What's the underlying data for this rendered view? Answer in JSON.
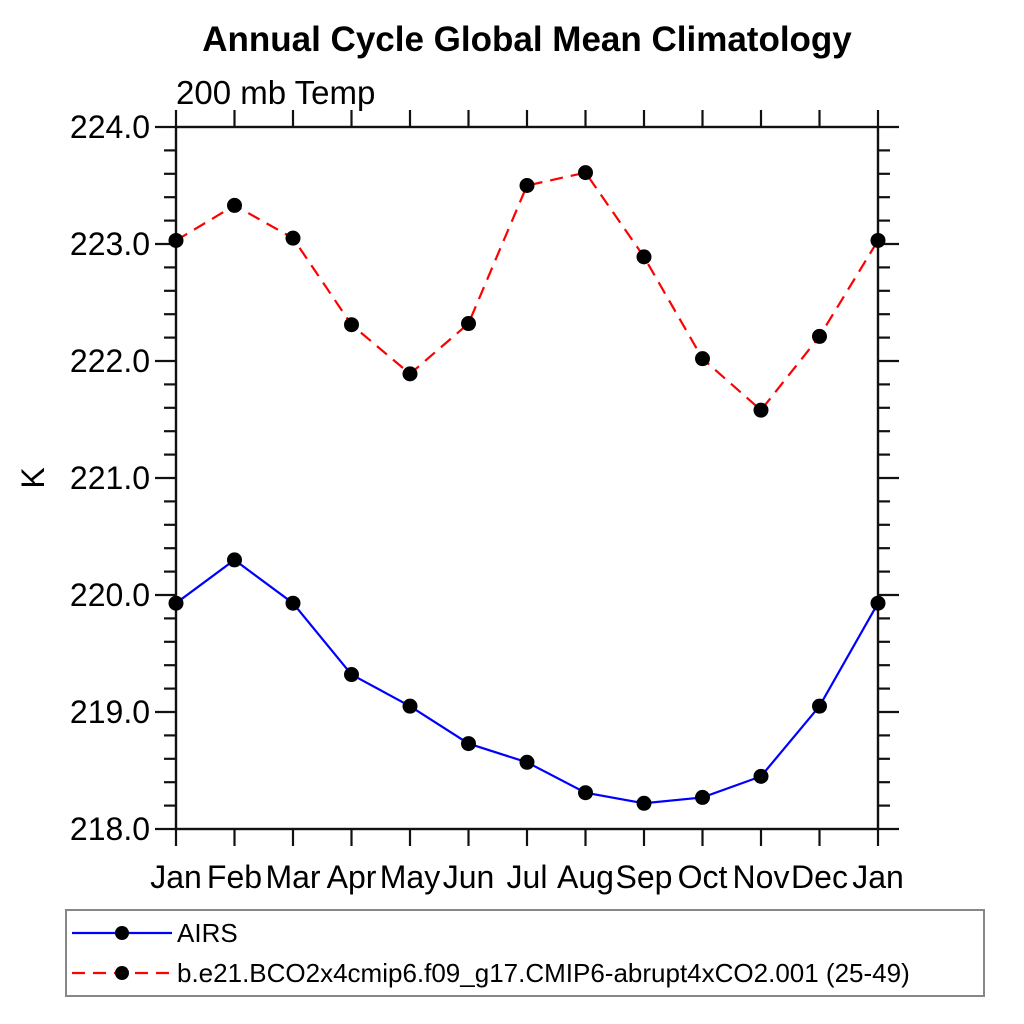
{
  "chart_data": {
    "type": "line",
    "title": "Annual Cycle Global Mean Climatology",
    "subtitle": "200 mb Temp",
    "ylabel": "K",
    "x_categories": [
      "Jan",
      "Feb",
      "Mar",
      "Apr",
      "May",
      "Jun",
      "Jul",
      "Aug",
      "Sep",
      "Oct",
      "Nov",
      "Dec",
      "Jan"
    ],
    "ylim": [
      218.0,
      224.0
    ],
    "ytick_labels": [
      "218.0",
      "219.0",
      "220.0",
      "221.0",
      "222.0",
      "223.0",
      "224.0"
    ],
    "ytick_minor_step": 0.2,
    "grid": false,
    "legend_position": "bottom-left-box",
    "series": [
      {
        "name": "AIRS",
        "color": "#0000ff",
        "style": "solid",
        "marker": "circle",
        "marker_color": "#000000",
        "values": [
          219.93,
          220.3,
          219.93,
          219.32,
          219.05,
          218.73,
          218.57,
          218.31,
          218.22,
          218.27,
          218.45,
          219.05,
          219.93
        ]
      },
      {
        "name": "b.e21.BCO2x4cmip6.f09_g17.CMIP6-abrupt4xCO2.001 (25-49)",
        "color": "#ff0000",
        "style": "dashed",
        "marker": "circle",
        "marker_color": "#000000",
        "values": [
          223.03,
          223.33,
          223.05,
          222.31,
          221.89,
          222.32,
          223.5,
          223.61,
          222.89,
          222.02,
          221.58,
          222.21,
          223.03
        ]
      }
    ],
    "axis_color": "#111111",
    "text_color": "#000000"
  }
}
